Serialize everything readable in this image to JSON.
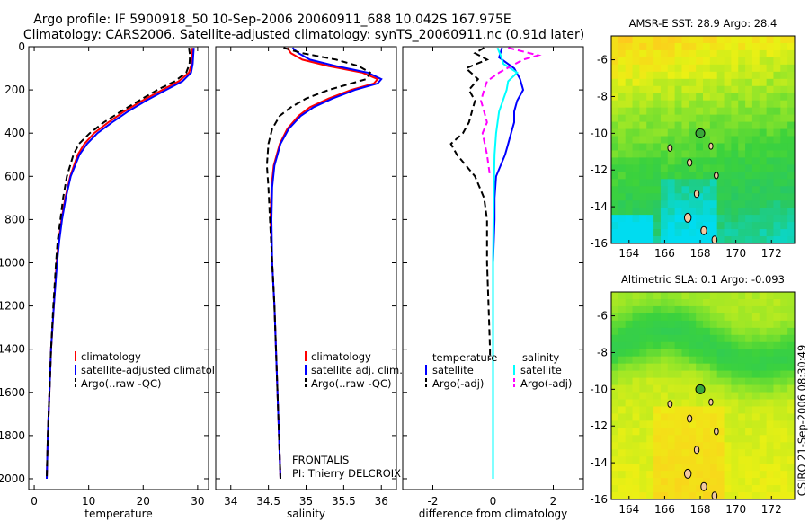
{
  "title": {
    "line1": "Argo profile: IF 5900918_50 10-Sep-2006 20060911_688 10.042S 167.975E",
    "line2": "Climatology: CARS2006. Satellite-adjusted climatology: synTS_20060911.nc (0.91d later)"
  },
  "side_label": "CSIRO 21-Sep-2006 08:30:49",
  "chart_data": [
    {
      "type": "line",
      "id": "temperature",
      "xlabel": "temperature",
      "ylabel": "",
      "xlim": [
        -1,
        32
      ],
      "ylim": [
        2050,
        0
      ],
      "xticks": [
        0,
        10,
        20,
        30
      ],
      "xtick_labels": [
        "0",
        "10",
        "20",
        "30"
      ],
      "yticks": [
        0,
        200,
        400,
        600,
        800,
        1000,
        1200,
        1400,
        1600,
        1800,
        2000
      ],
      "ytick_labels": [
        "0",
        "200",
        "400",
        "600",
        "800",
        "1000",
        "1200",
        "1400",
        "1600",
        "1800",
        "2000"
      ],
      "legend": [
        "climatology",
        "satellite-adjusted climatology",
        "Argo(..raw -QC)"
      ],
      "series": [
        {
          "name": "climatology",
          "color": "#ff0000",
          "dash": "",
          "depth": [
            5,
            40,
            80,
            120,
            160,
            200,
            250,
            300,
            350,
            400,
            450,
            500,
            600,
            700,
            800,
            900,
            1000,
            1200,
            1400,
            1600,
            1800,
            2000
          ],
          "values": [
            29.0,
            29.0,
            28.9,
            28.4,
            26.5,
            23.5,
            19.8,
            16.5,
            13.6,
            11.0,
            9.2,
            8.0,
            6.6,
            5.7,
            5.0,
            4.5,
            4.1,
            3.6,
            3.1,
            2.8,
            2.5,
            2.3
          ]
        },
        {
          "name": "satellite-adjusted climatology",
          "color": "#0000ff",
          "dash": "",
          "depth": [
            5,
            40,
            80,
            120,
            160,
            200,
            250,
            300,
            350,
            400,
            450,
            500,
            600,
            700,
            800,
            900,
            1000,
            1200,
            1400,
            1600,
            1800,
            2000
          ],
          "values": [
            29.3,
            29.2,
            29.1,
            28.8,
            27.2,
            24.2,
            20.5,
            17.2,
            14.3,
            11.6,
            9.7,
            8.3,
            6.7,
            5.8,
            5.1,
            4.6,
            4.2,
            3.6,
            3.1,
            2.8,
            2.5,
            2.3
          ]
        },
        {
          "name": "Argo(..raw -QC)",
          "color": "#000000",
          "dash": "7,4",
          "depth": [
            5,
            40,
            80,
            120,
            160,
            200,
            250,
            300,
            350,
            400,
            450,
            500,
            600,
            700,
            800,
            900,
            1000,
            1200,
            1400,
            1600,
            1800,
            2000
          ],
          "values": [
            28.4,
            28.6,
            28.5,
            27.9,
            25.8,
            22.6,
            19.2,
            15.9,
            12.8,
            10.2,
            8.2,
            7.2,
            6.0,
            5.3,
            4.8,
            4.3,
            4.0,
            3.5,
            3.1,
            2.8,
            2.5,
            2.3
          ]
        }
      ]
    },
    {
      "type": "line",
      "id": "salinity",
      "xlabel": "salinity",
      "ylabel": "",
      "xlim": [
        33.8,
        36.2
      ],
      "ylim": [
        2050,
        0
      ],
      "xticks": [
        34,
        34.5,
        35,
        35.5,
        36
      ],
      "xtick_labels": [
        "34",
        "34.5",
        "35",
        "35.5",
        "36"
      ],
      "legend": [
        "climatology",
        "satellite adj. clim.",
        "Argo(..raw -QC)"
      ],
      "annotation": [
        "FRONTALIS",
        "PI: Thierry DELCROIX"
      ],
      "series": [
        {
          "name": "climatology",
          "color": "#ff0000",
          "dash": "",
          "depth": [
            5,
            30,
            60,
            90,
            120,
            150,
            170,
            200,
            240,
            280,
            320,
            380,
            450,
            550,
            650,
            800,
            1000,
            1200,
            1400,
            1600,
            1800,
            2000
          ],
          "values": [
            34.75,
            34.8,
            34.95,
            35.3,
            35.75,
            35.95,
            35.9,
            35.6,
            35.3,
            35.05,
            34.9,
            34.75,
            34.65,
            34.57,
            34.54,
            34.53,
            34.55,
            34.58,
            34.6,
            34.62,
            34.64,
            34.66
          ]
        },
        {
          "name": "satellite adj. clim.",
          "color": "#0000ff",
          "dash": "",
          "depth": [
            5,
            30,
            60,
            90,
            120,
            150,
            170,
            200,
            240,
            280,
            320,
            380,
            450,
            550,
            650,
            800,
            1000,
            1200,
            1400,
            1600,
            1800,
            2000
          ],
          "values": [
            34.82,
            34.9,
            35.05,
            35.4,
            35.82,
            36.0,
            35.95,
            35.65,
            35.35,
            35.1,
            34.93,
            34.77,
            34.66,
            34.58,
            34.55,
            34.54,
            34.55,
            34.58,
            34.6,
            34.62,
            34.64,
            34.66
          ]
        },
        {
          "name": "Argo(..raw -QC)",
          "color": "#000000",
          "dash": "7,4",
          "depth": [
            5,
            30,
            60,
            90,
            120,
            150,
            170,
            200,
            240,
            280,
            320,
            380,
            450,
            550,
            650,
            800,
            1000,
            1200,
            1400,
            1600,
            1800,
            2000
          ],
          "values": [
            34.7,
            34.95,
            35.4,
            35.7,
            35.85,
            35.8,
            35.6,
            35.3,
            35.0,
            34.8,
            34.65,
            34.55,
            34.5,
            34.48,
            34.5,
            34.52,
            34.55,
            34.58,
            34.6,
            34.62,
            34.64,
            34.66
          ]
        }
      ]
    },
    {
      "type": "line",
      "id": "difference",
      "xlabel": "difference from climatology",
      "ylabel": "",
      "xlim": [
        -3,
        3
      ],
      "ylim": [
        2050,
        0
      ],
      "xticks": [
        -2,
        0,
        2
      ],
      "xtick_labels": [
        "-2",
        "0",
        "2"
      ],
      "legend_titles": [
        "temperature",
        "salinity"
      ],
      "legend": [
        "satellite",
        "Argo(-adj)",
        "satellite",
        "Argo(-adj)"
      ],
      "series": [
        {
          "name": "temperature satellite",
          "color": "#0000ff",
          "dash": "",
          "depth": [
            5,
            50,
            100,
            150,
            200,
            250,
            300,
            350,
            400,
            450,
            500,
            600,
            700,
            800,
            1000,
            1200,
            1500,
            2000
          ],
          "values": [
            0.3,
            0.2,
            0.7,
            0.9,
            1.0,
            0.8,
            0.7,
            0.7,
            0.6,
            0.5,
            0.4,
            0.1,
            0.05,
            0.05,
            0.0,
            0.0,
            0.0,
            0.0
          ]
        },
        {
          "name": "temperature Argo(-adj)",
          "color": "#000000",
          "dash": "7,4",
          "depth": [
            5,
            30,
            60,
            100,
            150,
            200,
            250,
            300,
            350,
            400,
            450,
            500,
            550,
            600,
            700,
            800,
            900,
            1000,
            1200,
            1400,
            1450
          ],
          "values": [
            -0.3,
            -0.6,
            -0.2,
            -0.9,
            -0.5,
            -0.8,
            -0.6,
            -0.7,
            -0.8,
            -1.0,
            -1.4,
            -1.2,
            -0.9,
            -0.6,
            -0.3,
            -0.2,
            -0.2,
            -0.2,
            -0.15,
            -0.1,
            -0.1
          ]
        },
        {
          "name": "salinity satellite",
          "color": "#00ffff",
          "dash": "",
          "depth": [
            5,
            40,
            80,
            120,
            160,
            200,
            300,
            400,
            500,
            700,
            1000,
            1400,
            2000
          ],
          "values": [
            0.15,
            0.25,
            0.35,
            0.8,
            0.5,
            0.45,
            0.2,
            0.1,
            0.05,
            0.02,
            0.0,
            0.0,
            0.0
          ]
        },
        {
          "name": "salinity Argo(-adj)",
          "color": "#ff00ff",
          "dash": "7,4",
          "depth": [
            5,
            40,
            60,
            90,
            120,
            160,
            200,
            250,
            300,
            350,
            400,
            500,
            600
          ],
          "values": [
            0.5,
            1.5,
            1.0,
            0.6,
            0.2,
            -0.2,
            -0.3,
            -0.4,
            -0.3,
            -0.2,
            -0.35,
            -0.2,
            -0.1
          ]
        }
      ]
    },
    {
      "type": "heatmap",
      "id": "sst_map",
      "title": "AMSR-E SST: 28.9 Argo: 28.4",
      "xlim": [
        163,
        173.3
      ],
      "ylim": [
        -16,
        -4.7
      ],
      "xticks": [
        164,
        166,
        168,
        170,
        172
      ],
      "xtick_labels": [
        "164",
        "166",
        "168",
        "170",
        "172"
      ],
      "yticks": [
        -6,
        -8,
        -10,
        -12,
        -14,
        -16
      ],
      "ytick_labels": [
        "-6",
        "-8",
        "-10",
        "-12",
        "-14",
        "-16"
      ],
      "marker": {
        "lon": 168.0,
        "lat": -10.0
      }
    },
    {
      "type": "heatmap",
      "id": "sla_map",
      "title": "Altimetric SLA: 0.1 Argo: -0.093",
      "xlim": [
        163,
        173.3
      ],
      "ylim": [
        -16,
        -4.7
      ],
      "xticks": [
        164,
        166,
        168,
        170,
        172
      ],
      "xtick_labels": [
        "164",
        "166",
        "168",
        "170",
        "172"
      ],
      "yticks": [
        -6,
        -8,
        -10,
        -12,
        -14,
        -16
      ],
      "ytick_labels": [
        "-6",
        "-8",
        "-10",
        "-12",
        "-14",
        "-16"
      ],
      "marker": {
        "lon": 168.0,
        "lat": -10.0
      }
    }
  ]
}
